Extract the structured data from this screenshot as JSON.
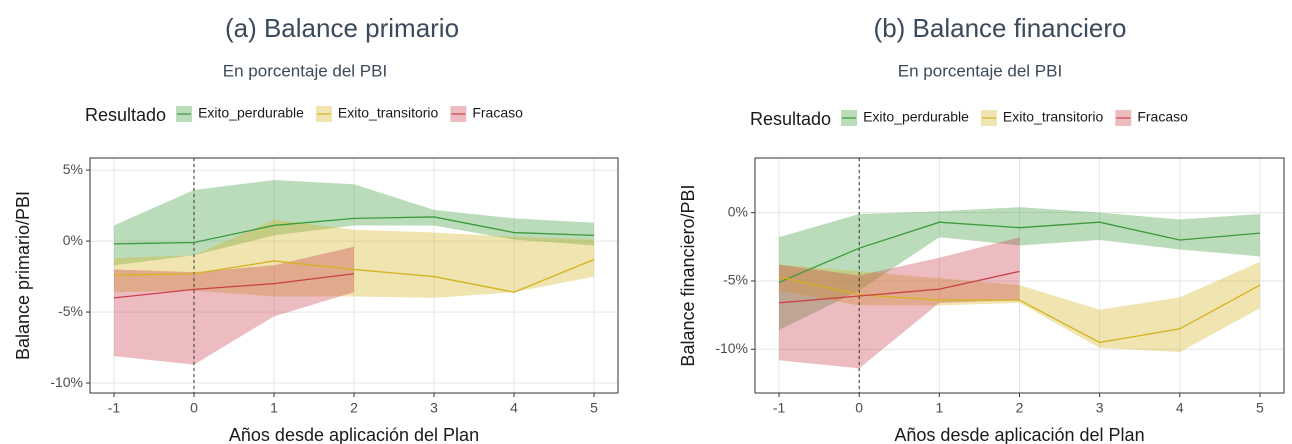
{
  "chart_data": [
    {
      "type": "line",
      "title": "(a) Balance primario",
      "subtitle": "En porcentaje del PBI",
      "x_label": "Años desde aplicación del Plan",
      "y_label": "Balance primario/PBI",
      "legend_title": "Resultado",
      "x": [
        -1,
        0,
        1,
        2,
        3,
        4,
        5
      ],
      "xlim": [
        -1.3,
        5.3
      ],
      "xticks": [
        -1,
        0,
        1,
        2,
        3,
        4,
        5
      ],
      "ylim": [
        -10.7,
        5.85
      ],
      "yticks": [
        {
          "value": -10,
          "label": "-10%"
        },
        {
          "value": -5,
          "label": "-5%"
        },
        {
          "value": 0,
          "label": "0%"
        },
        {
          "value": 5,
          "label": "5%"
        }
      ],
      "vline": 0,
      "grid": true,
      "series": [
        {
          "name": "Exito_perdurable",
          "color": "#3b9a3b",
          "values": [
            -0.2,
            -0.1,
            1.1,
            1.6,
            1.7,
            0.6,
            0.4
          ],
          "upper": [
            1.1,
            3.6,
            4.3,
            4.0,
            2.2,
            1.6,
            1.3
          ],
          "lower": [
            -1.7,
            -1.0,
            0.4,
            1.1,
            1.1,
            0.1,
            -0.3
          ]
        },
        {
          "name": "Exito_transitorio",
          "color": "#d4b21e",
          "values": [
            -2.4,
            -2.3,
            -1.4,
            -2.0,
            -2.5,
            -3.6,
            -1.3
          ],
          "upper": [
            -1.2,
            -1.0,
            1.5,
            0.8,
            0.6,
            0.3,
            0.1
          ],
          "lower": [
            -3.6,
            -3.5,
            -3.9,
            -3.9,
            -4.0,
            -3.6,
            -2.5
          ]
        },
        {
          "name": "Fracaso",
          "color": "#c8404a",
          "values": [
            -4.0,
            -3.4,
            -3.0,
            -2.3,
            null,
            null,
            null
          ],
          "upper": [
            -2.0,
            -2.2,
            -1.7,
            -0.4,
            null,
            null,
            null
          ],
          "lower": [
            -8.1,
            -8.7,
            -5.3,
            -3.6,
            null,
            null,
            null
          ]
        }
      ]
    },
    {
      "type": "line",
      "title": "(b) Balance financiero",
      "subtitle": "En porcentaje del PBI",
      "x_label": "Años desde aplicación del Plan",
      "y_label": "Balance financiero/PBI",
      "legend_title": "Resultado",
      "x": [
        -1,
        0,
        1,
        2,
        3,
        4,
        5
      ],
      "xlim": [
        -1.3,
        5.3
      ],
      "xticks": [
        -1,
        0,
        1,
        2,
        3,
        4,
        5
      ],
      "ylim": [
        -13.2,
        4.0
      ],
      "yticks": [
        {
          "value": -10,
          "label": "-10%"
        },
        {
          "value": -5,
          "label": "-5%"
        },
        {
          "value": 0,
          "label": "0%"
        }
      ],
      "vline": 0,
      "grid": true,
      "series": [
        {
          "name": "Exito_perdurable",
          "color": "#3b9a3b",
          "values": [
            -5.1,
            -2.6,
            -0.7,
            -1.1,
            -0.7,
            -2.0,
            -1.5
          ],
          "upper": [
            -1.8,
            -0.1,
            0.1,
            0.4,
            0,
            -0.5,
            -0.1
          ],
          "lower": [
            -8.6,
            -5.7,
            -1.8,
            -2.4,
            -2.0,
            -2.7,
            -3.2
          ]
        },
        {
          "name": "Exito_transitorio",
          "color": "#d4b21e",
          "values": [
            -4.7,
            -6.0,
            -6.4,
            -6.4,
            -9.5,
            -8.5,
            -5.3
          ],
          "upper": [
            -3.8,
            -4.3,
            -4.8,
            -5.3,
            -7.1,
            -6.2,
            -3.6
          ],
          "lower": [
            -5.7,
            -6.8,
            -6.8,
            -6.6,
            -9.9,
            -10.2,
            -7.0
          ]
        },
        {
          "name": "Fracaso",
          "color": "#c8404a",
          "values": [
            -6.6,
            -6.1,
            -5.6,
            -4.3,
            null,
            null,
            null
          ],
          "upper": [
            -3.8,
            -4.6,
            -3.3,
            -1.8,
            null,
            null,
            null
          ],
          "lower": [
            -10.8,
            -11.4,
            -6.6,
            -6.4,
            null,
            null,
            null
          ]
        }
      ]
    }
  ]
}
